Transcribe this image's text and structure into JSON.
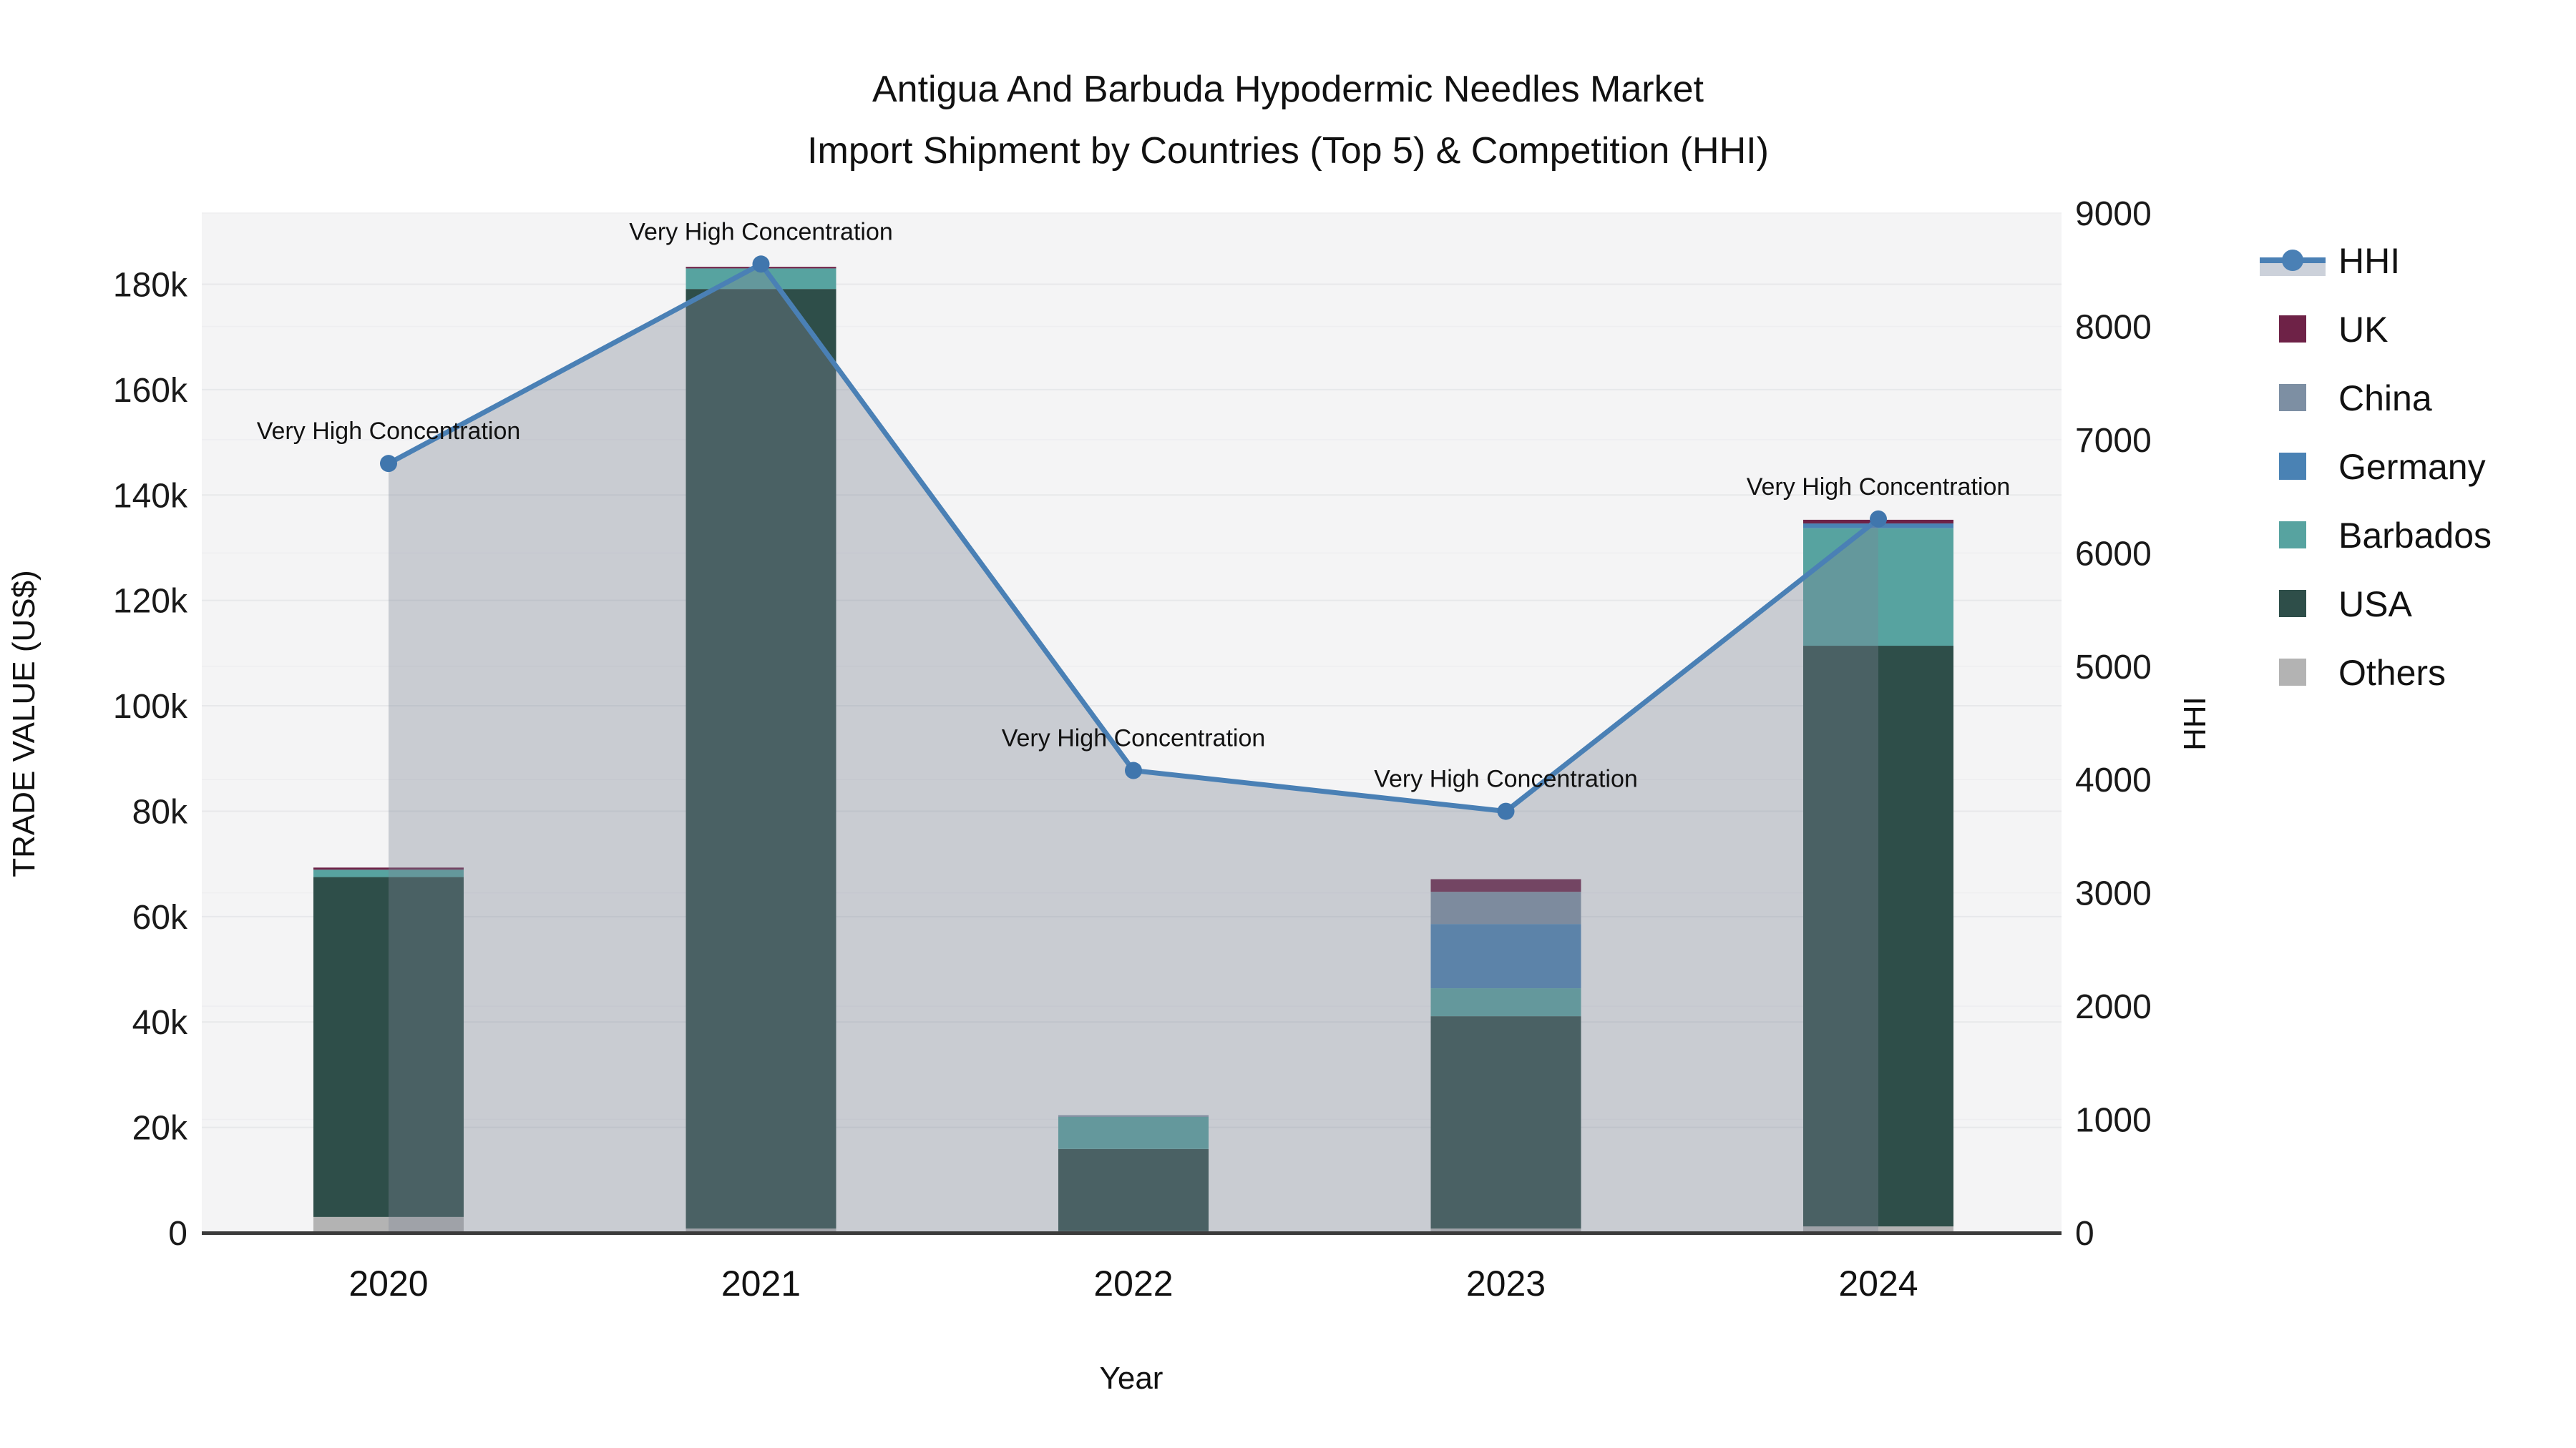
{
  "title": {
    "line1": "Antigua And Barbuda Hypodermic Needles Market",
    "line2": "Import Shipment by Countries (Top 5) & Competition (HHI)"
  },
  "axes": {
    "y_left": {
      "title": "TRADE VALUE (US$)",
      "ticks": [
        "0",
        "20k",
        "40k",
        "60k",
        "80k",
        "100k",
        "120k",
        "140k",
        "160k",
        "180k"
      ],
      "tick_values": [
        0,
        20000,
        40000,
        60000,
        80000,
        100000,
        120000,
        140000,
        160000,
        180000
      ]
    },
    "y_right": {
      "title": "HHI",
      "ticks": [
        "0",
        "1000",
        "2000",
        "3000",
        "4000",
        "5000",
        "6000",
        "7000",
        "8000",
        "9000"
      ],
      "tick_values": [
        0,
        1000,
        2000,
        3000,
        4000,
        5000,
        6000,
        7000,
        8000,
        9000
      ]
    },
    "x": {
      "title": "Year",
      "ticks": [
        "2020",
        "2021",
        "2022",
        "2023",
        "2024"
      ]
    }
  },
  "annotation_text": "Very High Concentration",
  "legend": [
    {
      "label": "HHI",
      "type": "line",
      "color": "#4a80b5"
    },
    {
      "label": "UK",
      "type": "swatch",
      "color": "#6e2247"
    },
    {
      "label": "China",
      "type": "swatch",
      "color": "#7d8fa3"
    },
    {
      "label": "Germany",
      "type": "swatch",
      "color": "#4a82b4"
    },
    {
      "label": "Barbados",
      "type": "swatch",
      "color": "#57a3a0"
    },
    {
      "label": "USA",
      "type": "swatch",
      "color": "#2e4e49"
    },
    {
      "label": "Others",
      "type": "swatch",
      "color": "#b3b3b3"
    }
  ],
  "chart_data": {
    "type": "bar-line-combo",
    "categories": [
      "2020",
      "2021",
      "2022",
      "2023",
      "2024"
    ],
    "bar_stack_order": [
      "Others",
      "USA",
      "Barbados",
      "Germany",
      "China",
      "UK"
    ],
    "series": [
      {
        "name": "Others",
        "color": "#b3b3b3",
        "values": [
          3000,
          800,
          300,
          800,
          1200
        ]
      },
      {
        "name": "USA",
        "color": "#2e4e49",
        "values": [
          64500,
          178300,
          15600,
          40300,
          110200
        ]
      },
      {
        "name": "Barbados",
        "color": "#57a3a0",
        "values": [
          1400,
          3900,
          6100,
          5300,
          22300
        ]
      },
      {
        "name": "Germany",
        "color": "#4a82b4",
        "values": [
          0,
          0,
          0,
          12200,
          900
        ]
      },
      {
        "name": "China",
        "color": "#7d8fa3",
        "values": [
          0,
          0,
          300,
          6100,
          0
        ]
      },
      {
        "name": "UK",
        "color": "#6e2247",
        "values": [
          400,
          300,
          0,
          2400,
          700
        ]
      }
    ],
    "bar_totals": [
      69300,
      183300,
      22300,
      67100,
      135300
    ],
    "hhi": {
      "name": "HHI",
      "color": "#4a80b5",
      "area_fill": "rgba(124,132,150,0.36)",
      "values": [
        6790,
        8550,
        4080,
        3720,
        6300
      ],
      "annotations": [
        "Very High Concentration",
        "Very High Concentration",
        "Very High Concentration",
        "Very High Concentration",
        "Very High Concentration"
      ]
    },
    "title": "Antigua And Barbuda Hypodermic Needles Market — Import Shipment by Countries (Top 5) & Competition (HHI)",
    "xlabel": "Year",
    "ylabel_left": "TRADE VALUE (US$)",
    "ylabel_right": "HHI",
    "ylim_left": [
      0,
      193500
    ],
    "ylim_right": [
      0,
      9000
    ],
    "grid": true,
    "legend_position": "right"
  },
  "colors": {
    "plot_bg": "#f4f4f5",
    "grid_left": "#e7e8ea",
    "grid_right": "#eeeef0",
    "axis_line": "#3b3b3b",
    "hhi_line": "#4a80b5",
    "hhi_marker": "#4076ad",
    "hhi_area": "rgba(124,132,150,0.36)",
    "legend_area_band": "#ccd1da"
  }
}
